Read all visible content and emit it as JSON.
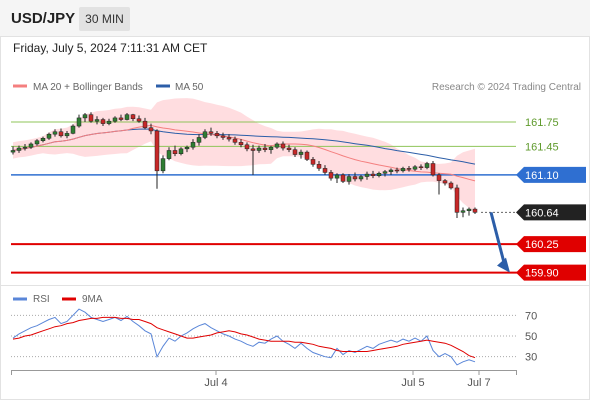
{
  "header": {
    "symbol": "USD/JPY",
    "timeframe": "30 MIN",
    "datetime": "Friday, July 5, 2024 7:11:31 AM CET"
  },
  "legend": {
    "ma20": "MA 20 + Bollinger Bands",
    "ma50": "MA 50",
    "rsi": "RSI",
    "ma9": "9MA"
  },
  "credit": "Research © 2024 Trading Central",
  "colors": {
    "ma20": "#f47f7f",
    "ma50": "#2c5ea8",
    "band": "#ffd5d8",
    "green_level": "#8fc45a",
    "blue_level": "#2f6fd1",
    "red_level": "#e00000",
    "rsi": "#5a86d8",
    "arrow": "#2c5ea8"
  },
  "chart_data": [
    {
      "type": "candlestick",
      "title": "USD/JPY",
      "xlabel": "",
      "ylabel": "",
      "ylim": [
        159.76,
        162.02
      ],
      "x_ticks": [
        "Jul 4",
        "Jul 5",
        "Jul 7"
      ],
      "levels": [
        {
          "value": 161.75,
          "label": "161.75",
          "style": "green"
        },
        {
          "value": 161.45,
          "label": "161.45",
          "style": "green"
        },
        {
          "value": 161.1,
          "label": "161.10",
          "style": "blue"
        },
        {
          "value": 160.64,
          "label": "160.64",
          "style": "current"
        },
        {
          "value": 160.25,
          "label": "160.25",
          "style": "red"
        },
        {
          "value": 159.9,
          "label": "159.90",
          "style": "red"
        }
      ],
      "projection": {
        "from": 160.64,
        "to": 159.9
      },
      "candles": [
        {
          "o": 161.38,
          "h": 161.45,
          "l": 161.35,
          "c": 161.4
        },
        {
          "o": 161.4,
          "h": 161.46,
          "l": 161.37,
          "c": 161.43
        },
        {
          "o": 161.43,
          "h": 161.48,
          "l": 161.4,
          "c": 161.44
        },
        {
          "o": 161.44,
          "h": 161.5,
          "l": 161.42,
          "c": 161.48
        },
        {
          "o": 161.48,
          "h": 161.54,
          "l": 161.46,
          "c": 161.52
        },
        {
          "o": 161.52,
          "h": 161.57,
          "l": 161.5,
          "c": 161.55
        },
        {
          "o": 161.55,
          "h": 161.62,
          "l": 161.53,
          "c": 161.6
        },
        {
          "o": 161.6,
          "h": 161.66,
          "l": 161.57,
          "c": 161.63
        },
        {
          "o": 161.63,
          "h": 161.67,
          "l": 161.56,
          "c": 161.58
        },
        {
          "o": 161.58,
          "h": 161.64,
          "l": 161.55,
          "c": 161.61
        },
        {
          "o": 161.61,
          "h": 161.72,
          "l": 161.6,
          "c": 161.7
        },
        {
          "o": 161.7,
          "h": 161.84,
          "l": 161.68,
          "c": 161.8
        },
        {
          "o": 161.8,
          "h": 161.86,
          "l": 161.75,
          "c": 161.84
        },
        {
          "o": 161.84,
          "h": 161.87,
          "l": 161.74,
          "c": 161.76
        },
        {
          "o": 161.76,
          "h": 161.82,
          "l": 161.72,
          "c": 161.78
        },
        {
          "o": 161.78,
          "h": 161.8,
          "l": 161.7,
          "c": 161.73
        },
        {
          "o": 161.73,
          "h": 161.79,
          "l": 161.71,
          "c": 161.76
        },
        {
          "o": 161.76,
          "h": 161.82,
          "l": 161.74,
          "c": 161.8
        },
        {
          "o": 161.8,
          "h": 161.84,
          "l": 161.76,
          "c": 161.78
        },
        {
          "o": 161.78,
          "h": 161.86,
          "l": 161.77,
          "c": 161.84
        },
        {
          "o": 161.84,
          "h": 161.85,
          "l": 161.76,
          "c": 161.79
        },
        {
          "o": 161.79,
          "h": 161.83,
          "l": 161.74,
          "c": 161.76
        },
        {
          "o": 161.76,
          "h": 161.8,
          "l": 161.66,
          "c": 161.68
        },
        {
          "o": 161.68,
          "h": 161.73,
          "l": 161.6,
          "c": 161.64
        },
        {
          "o": 161.64,
          "h": 161.66,
          "l": 160.93,
          "c": 161.15
        },
        {
          "o": 161.15,
          "h": 161.34,
          "l": 161.12,
          "c": 161.3
        },
        {
          "o": 161.3,
          "h": 161.44,
          "l": 161.28,
          "c": 161.4
        },
        {
          "o": 161.4,
          "h": 161.46,
          "l": 161.33,
          "c": 161.36
        },
        {
          "o": 161.36,
          "h": 161.44,
          "l": 161.34,
          "c": 161.42
        },
        {
          "o": 161.42,
          "h": 161.46,
          "l": 161.38,
          "c": 161.44
        },
        {
          "o": 161.44,
          "h": 161.54,
          "l": 161.41,
          "c": 161.5
        },
        {
          "o": 161.5,
          "h": 161.6,
          "l": 161.46,
          "c": 161.56
        },
        {
          "o": 161.56,
          "h": 161.66,
          "l": 161.54,
          "c": 161.63
        },
        {
          "o": 161.63,
          "h": 161.68,
          "l": 161.58,
          "c": 161.61
        },
        {
          "o": 161.61,
          "h": 161.64,
          "l": 161.55,
          "c": 161.58
        },
        {
          "o": 161.58,
          "h": 161.62,
          "l": 161.53,
          "c": 161.56
        },
        {
          "o": 161.56,
          "h": 161.6,
          "l": 161.51,
          "c": 161.54
        },
        {
          "o": 161.54,
          "h": 161.57,
          "l": 161.47,
          "c": 161.5
        },
        {
          "o": 161.5,
          "h": 161.54,
          "l": 161.44,
          "c": 161.47
        },
        {
          "o": 161.47,
          "h": 161.5,
          "l": 161.39,
          "c": 161.42
        },
        {
          "o": 161.42,
          "h": 161.47,
          "l": 161.1,
          "c": 161.4
        },
        {
          "o": 161.4,
          "h": 161.46,
          "l": 161.37,
          "c": 161.43
        },
        {
          "o": 161.43,
          "h": 161.48,
          "l": 161.38,
          "c": 161.41
        },
        {
          "o": 161.41,
          "h": 161.46,
          "l": 161.36,
          "c": 161.44
        },
        {
          "o": 161.44,
          "h": 161.5,
          "l": 161.42,
          "c": 161.48
        },
        {
          "o": 161.48,
          "h": 161.51,
          "l": 161.4,
          "c": 161.43
        },
        {
          "o": 161.43,
          "h": 161.47,
          "l": 161.38,
          "c": 161.41
        },
        {
          "o": 161.41,
          "h": 161.44,
          "l": 161.32,
          "c": 161.35
        },
        {
          "o": 161.35,
          "h": 161.41,
          "l": 161.3,
          "c": 161.38
        },
        {
          "o": 161.38,
          "h": 161.4,
          "l": 161.27,
          "c": 161.29
        },
        {
          "o": 161.29,
          "h": 161.32,
          "l": 161.2,
          "c": 161.23
        },
        {
          "o": 161.23,
          "h": 161.27,
          "l": 161.15,
          "c": 161.18
        },
        {
          "o": 161.18,
          "h": 161.22,
          "l": 161.1,
          "c": 161.13
        },
        {
          "o": 161.13,
          "h": 161.16,
          "l": 161.03,
          "c": 161.06
        },
        {
          "o": 161.06,
          "h": 161.12,
          "l": 161.0,
          "c": 161.1
        },
        {
          "o": 161.1,
          "h": 161.12,
          "l": 161.0,
          "c": 161.02
        },
        {
          "o": 161.02,
          "h": 161.11,
          "l": 160.98,
          "c": 161.08
        },
        {
          "o": 161.08,
          "h": 161.13,
          "l": 161.02,
          "c": 161.05
        },
        {
          "o": 161.05,
          "h": 161.1,
          "l": 161.02,
          "c": 161.08
        },
        {
          "o": 161.08,
          "h": 161.14,
          "l": 161.04,
          "c": 161.11
        },
        {
          "o": 161.11,
          "h": 161.15,
          "l": 161.06,
          "c": 161.09
        },
        {
          "o": 161.09,
          "h": 161.14,
          "l": 161.07,
          "c": 161.12
        },
        {
          "o": 161.12,
          "h": 161.16,
          "l": 161.08,
          "c": 161.14
        },
        {
          "o": 161.14,
          "h": 161.18,
          "l": 161.1,
          "c": 161.16
        },
        {
          "o": 161.16,
          "h": 161.19,
          "l": 161.12,
          "c": 161.15
        },
        {
          "o": 161.15,
          "h": 161.2,
          "l": 161.13,
          "c": 161.18
        },
        {
          "o": 161.18,
          "h": 161.21,
          "l": 161.14,
          "c": 161.17
        },
        {
          "o": 161.17,
          "h": 161.22,
          "l": 161.15,
          "c": 161.2
        },
        {
          "o": 161.2,
          "h": 161.23,
          "l": 161.16,
          "c": 161.19
        },
        {
          "o": 161.19,
          "h": 161.26,
          "l": 161.17,
          "c": 161.24
        },
        {
          "o": 161.24,
          "h": 161.27,
          "l": 161.08,
          "c": 161.1
        },
        {
          "o": 161.1,
          "h": 161.12,
          "l": 160.86,
          "c": 161.03
        },
        {
          "o": 161.03,
          "h": 161.05,
          "l": 160.97,
          "c": 161.0
        },
        {
          "o": 161.0,
          "h": 161.02,
          "l": 160.92,
          "c": 160.94
        },
        {
          "o": 160.94,
          "h": 160.98,
          "l": 160.57,
          "c": 160.64
        },
        {
          "o": 160.64,
          "h": 160.7,
          "l": 160.58,
          "c": 160.66
        },
        {
          "o": 160.66,
          "h": 160.7,
          "l": 160.6,
          "c": 160.68
        },
        {
          "o": 160.68,
          "h": 160.7,
          "l": 160.62,
          "c": 160.64
        }
      ]
    },
    {
      "type": "line",
      "title": "RSI",
      "xlabel": "",
      "ylabel": "",
      "ylim": [
        20,
        80
      ],
      "y_ticks": [
        70,
        50,
        30
      ],
      "series": [
        {
          "name": "RSI",
          "values": [
            48,
            52,
            55,
            58,
            60,
            63,
            66,
            68,
            62,
            64,
            70,
            76,
            73,
            68,
            66,
            64,
            66,
            68,
            65,
            69,
            64,
            60,
            55,
            52,
            30,
            40,
            48,
            45,
            50,
            53,
            57,
            60,
            62,
            58,
            55,
            52,
            50,
            47,
            45,
            42,
            40,
            44,
            43,
            47,
            50,
            45,
            42,
            38,
            43,
            38,
            34,
            32,
            30,
            29,
            38,
            32,
            36,
            34,
            37,
            40,
            38,
            42,
            44,
            46,
            44,
            47,
            45,
            48,
            45,
            50,
            36,
            30,
            33,
            30,
            22,
            25,
            27,
            25
          ]
        },
        {
          "name": "9MA",
          "values": [
            47,
            48,
            50,
            51,
            53,
            55,
            57,
            59,
            60,
            62,
            63,
            65,
            66,
            67,
            67,
            68,
            68,
            68,
            67,
            67,
            66,
            66,
            64,
            62,
            58,
            56,
            54,
            52,
            50,
            48,
            48,
            49,
            50,
            51,
            53,
            54,
            55,
            54,
            52,
            51,
            49,
            47,
            46,
            45,
            45,
            45,
            45,
            44,
            44,
            43,
            42,
            40,
            39,
            38,
            36,
            35,
            35,
            35,
            35,
            35,
            36,
            37,
            38,
            39,
            40,
            42,
            43,
            44,
            45,
            46,
            45,
            44,
            43,
            41,
            38,
            35,
            31,
            29
          ]
        }
      ]
    }
  ]
}
